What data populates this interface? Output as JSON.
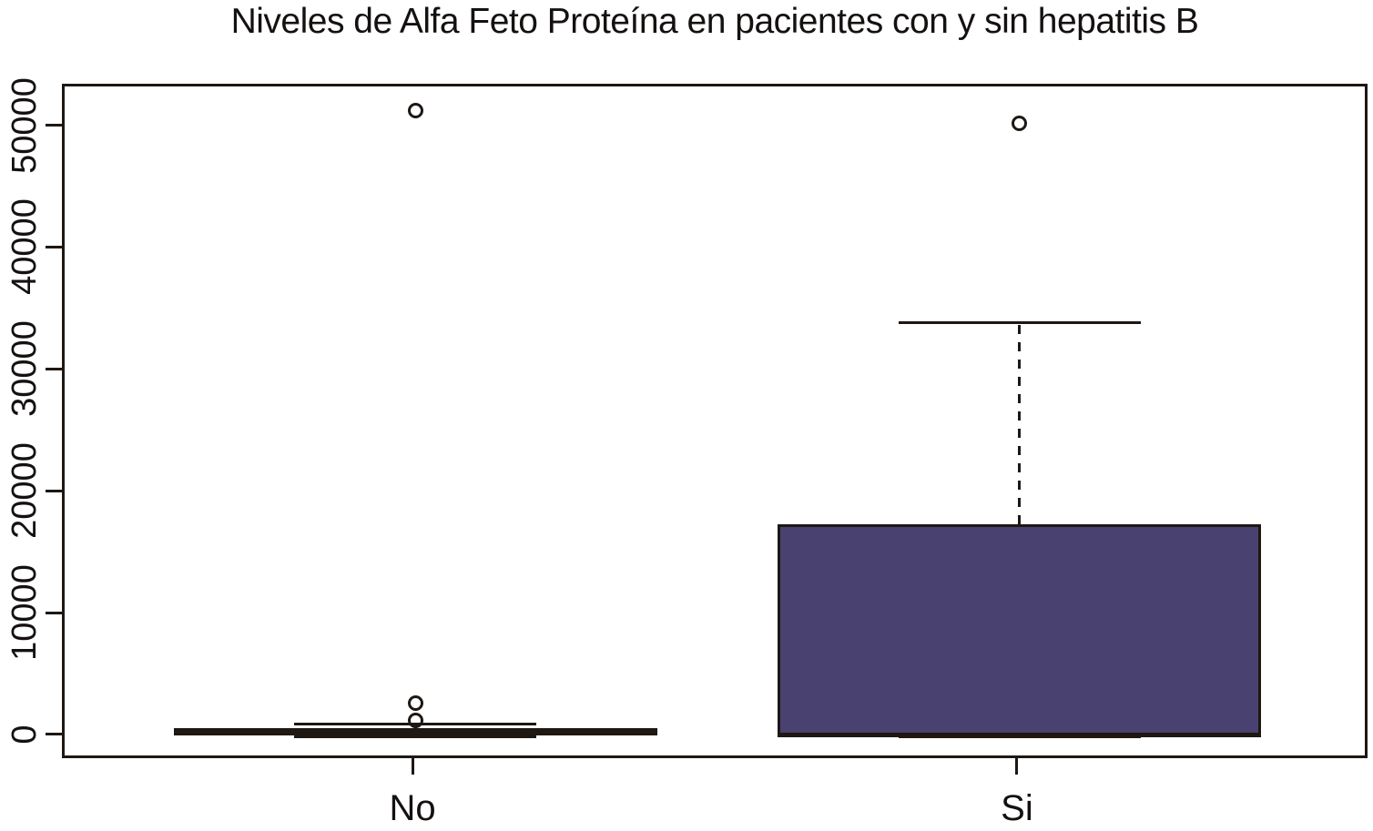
{
  "title": "Niveles de Alfa Feto Proteína en pacientes con y sin hepatitis B",
  "colors": {
    "line": "#1e1712",
    "text": "#141110",
    "background": "#ffffff",
    "box_fill": "#494170"
  },
  "chart_data": {
    "type": "boxplot",
    "title": "Niveles de Alfa Feto Proteína en pacientes con y sin hepatitis B",
    "xlabel": "",
    "ylabel": "",
    "categories": [
      "No",
      "Si"
    ],
    "yticks": [
      0,
      10000,
      20000,
      30000,
      40000,
      50000
    ],
    "ylim": [
      -1950,
      53400
    ],
    "grid": false,
    "legend": null,
    "series": [
      {
        "name": "No",
        "whisker_low": 0,
        "q1": 150,
        "median": 400,
        "q3": 750,
        "whisker_high": 1100,
        "outliers": [
          1400,
          2800,
          51400
        ],
        "box_fill": "#494170"
      },
      {
        "name": "Si",
        "whisker_low": 0,
        "q1": 50,
        "median": 150,
        "q3": 17500,
        "whisker_high": 34000,
        "outliers": [
          50400
        ],
        "box_fill": "#494170"
      }
    ]
  }
}
